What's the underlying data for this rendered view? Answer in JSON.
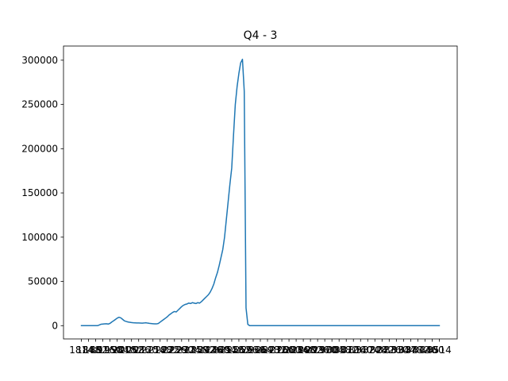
{
  "chart_data": {
    "type": "line",
    "title": "Q4 - 3",
    "xlabel": "",
    "ylabel": "",
    "grid": false,
    "legend": "none",
    "color": "#1f77b4",
    "ylim": [
      -15000,
      316000
    ],
    "yticks": [
      0,
      50000,
      100000,
      150000,
      200000,
      250000,
      300000
    ],
    "ytick_labels": [
      "0",
      "50000",
      "100000",
      "150000",
      "200000",
      "250000",
      "300000"
    ],
    "xtick_labels": [
      "1814",
      "1848",
      "1882",
      "1916",
      "1950",
      "1984",
      "2018",
      "2052",
      "2086",
      "2120",
      "2154",
      "2188",
      "2222",
      "2256",
      "2290",
      "2324",
      "2358",
      "2392",
      "2426",
      "2460",
      "2494",
      "2528",
      "2562",
      "2596",
      "2630",
      "2664",
      "2698",
      "2732",
      "2766",
      "2800",
      "2834",
      "2868",
      "2902",
      "2936",
      "2970",
      "3004",
      "3038",
      "3072",
      "3106",
      "3140",
      "3174",
      "3208",
      "3242",
      "3276",
      "3310",
      "3344",
      "3378",
      "3412",
      "3446",
      "3480",
      "3514"
    ],
    "series": [
      {
        "points": [
          [
            0,
            0
          ],
          [
            3,
            0
          ],
          [
            6,
            0
          ],
          [
            9,
            0
          ],
          [
            10,
            800
          ],
          [
            11,
            1600
          ],
          [
            12,
            1800
          ],
          [
            13,
            2000
          ],
          [
            14,
            2200
          ],
          [
            15,
            1800
          ],
          [
            16,
            2600
          ],
          [
            17,
            4200
          ],
          [
            18,
            5500
          ],
          [
            19,
            7000
          ],
          [
            20,
            8500
          ],
          [
            21,
            9500
          ],
          [
            22,
            8800
          ],
          [
            23,
            7200
          ],
          [
            24,
            5500
          ],
          [
            25,
            4800
          ],
          [
            26,
            4200
          ],
          [
            27,
            3800
          ],
          [
            28,
            3500
          ],
          [
            29,
            3300
          ],
          [
            30,
            3200
          ],
          [
            31,
            3100
          ],
          [
            32,
            3000
          ],
          [
            33,
            2900
          ],
          [
            34,
            2800
          ],
          [
            35,
            3000
          ],
          [
            36,
            3300
          ],
          [
            37,
            2900
          ],
          [
            38,
            2600
          ],
          [
            39,
            2400
          ],
          [
            40,
            2200
          ],
          [
            41,
            2000
          ],
          [
            42,
            2000
          ],
          [
            43,
            2500
          ],
          [
            44,
            4000
          ],
          [
            45,
            5500
          ],
          [
            46,
            7000
          ],
          [
            47,
            8500
          ],
          [
            48,
            10000
          ],
          [
            49,
            12000
          ],
          [
            50,
            13500
          ],
          [
            51,
            15000
          ],
          [
            52,
            16000
          ],
          [
            53,
            15500
          ],
          [
            54,
            17500
          ],
          [
            55,
            19500
          ],
          [
            56,
            21500
          ],
          [
            57,
            23000
          ],
          [
            58,
            24000
          ],
          [
            59,
            24500
          ],
          [
            60,
            25500
          ],
          [
            61,
            25000
          ],
          [
            62,
            26000
          ],
          [
            63,
            25500
          ],
          [
            64,
            25000
          ],
          [
            65,
            26000
          ],
          [
            66,
            25500
          ],
          [
            67,
            27000
          ],
          [
            68,
            29000
          ],
          [
            69,
            31000
          ],
          [
            70,
            33000
          ],
          [
            71,
            35000
          ],
          [
            72,
            38000
          ],
          [
            73,
            42000
          ],
          [
            74,
            47000
          ],
          [
            75,
            54000
          ],
          [
            76,
            60000
          ],
          [
            77,
            68000
          ],
          [
            78,
            77000
          ],
          [
            79,
            86000
          ],
          [
            80,
            100000
          ],
          [
            81,
            120000
          ],
          [
            82,
            140000
          ],
          [
            83,
            160000
          ],
          [
            84,
            178000
          ],
          [
            85,
            215000
          ],
          [
            86,
            250000
          ],
          [
            87,
            270000
          ],
          [
            88,
            285000
          ],
          [
            89,
            297000
          ],
          [
            90,
            301000
          ],
          [
            91,
            265000
          ],
          [
            92,
            20000
          ],
          [
            93,
            1500
          ],
          [
            94,
            0
          ],
          [
            96,
            0
          ],
          [
            100,
            0
          ],
          [
            150,
            0
          ],
          [
            200,
            0
          ]
        ]
      }
    ]
  }
}
